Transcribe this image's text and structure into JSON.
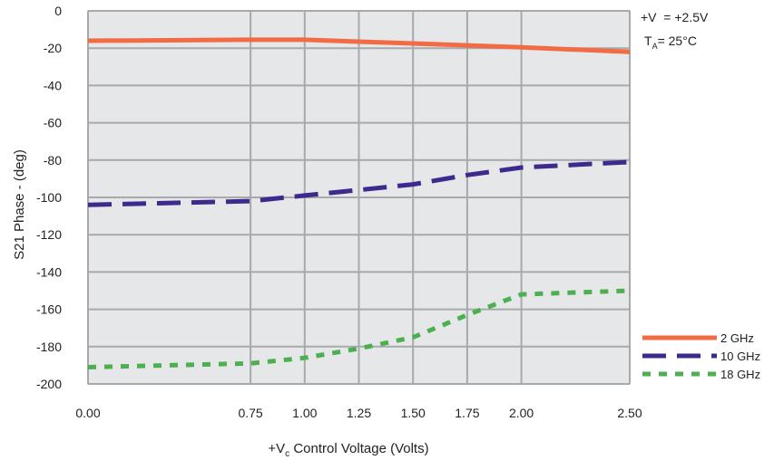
{
  "chart_data": {
    "type": "line",
    "xlabel_main": "+V",
    "xlabel_sub": "c",
    "xlabel_rest": " Control Voltage  (Volts)",
    "ylabel": "S21 Phase - (deg)",
    "xlim": [
      0.0,
      2.5
    ],
    "ylim": [
      -200,
      0
    ],
    "x_ticks": [
      0.0,
      0.75,
      1.0,
      1.25,
      1.5,
      1.75,
      2.0,
      2.5
    ],
    "x_tick_labels": [
      "0.00",
      "0.75",
      "1.00",
      "1.25",
      "1.50",
      "1.75",
      "2.00",
      "2.50"
    ],
    "y_ticks": [
      0,
      -20,
      -40,
      -60,
      -80,
      -100,
      -120,
      -140,
      -160,
      -180,
      -200
    ],
    "y_tick_labels": [
      "0",
      "-20",
      "-40",
      "-60",
      "-80",
      "-100",
      "-120",
      "-140",
      "-160",
      "-180",
      "-200"
    ],
    "grid": true,
    "legend_position": "right",
    "annotations": {
      "line1": "+V  = +2.5V",
      "line2_main": "T",
      "line2_sub": "A",
      "line2_rest": "= 25°C"
    },
    "series": [
      {
        "name": "2 GHz",
        "color": "#f26b43",
        "dash": "solid",
        "points": [
          [
            0.0,
            -16
          ],
          [
            0.75,
            -15.5
          ],
          [
            1.0,
            -15.5
          ],
          [
            1.25,
            -16.5
          ],
          [
            1.5,
            -17.5
          ],
          [
            1.75,
            -18.5
          ],
          [
            2.0,
            -19.5
          ],
          [
            2.5,
            -22
          ]
        ]
      },
      {
        "name": "10 GHz",
        "color": "#3d2a8c",
        "dash": "long",
        "points": [
          [
            0.0,
            -104
          ],
          [
            0.75,
            -102
          ],
          [
            1.0,
            -99
          ],
          [
            1.25,
            -96
          ],
          [
            1.5,
            -93
          ],
          [
            1.75,
            -88
          ],
          [
            2.0,
            -84
          ],
          [
            2.5,
            -81
          ]
        ]
      },
      {
        "name": "18 GHz",
        "color": "#4cb050",
        "dash": "short",
        "points": [
          [
            0.0,
            -191
          ],
          [
            0.75,
            -189
          ],
          [
            1.0,
            -186
          ],
          [
            1.25,
            -181
          ],
          [
            1.5,
            -175
          ],
          [
            1.75,
            -163
          ],
          [
            2.0,
            -152
          ],
          [
            2.5,
            -150
          ]
        ]
      }
    ]
  }
}
